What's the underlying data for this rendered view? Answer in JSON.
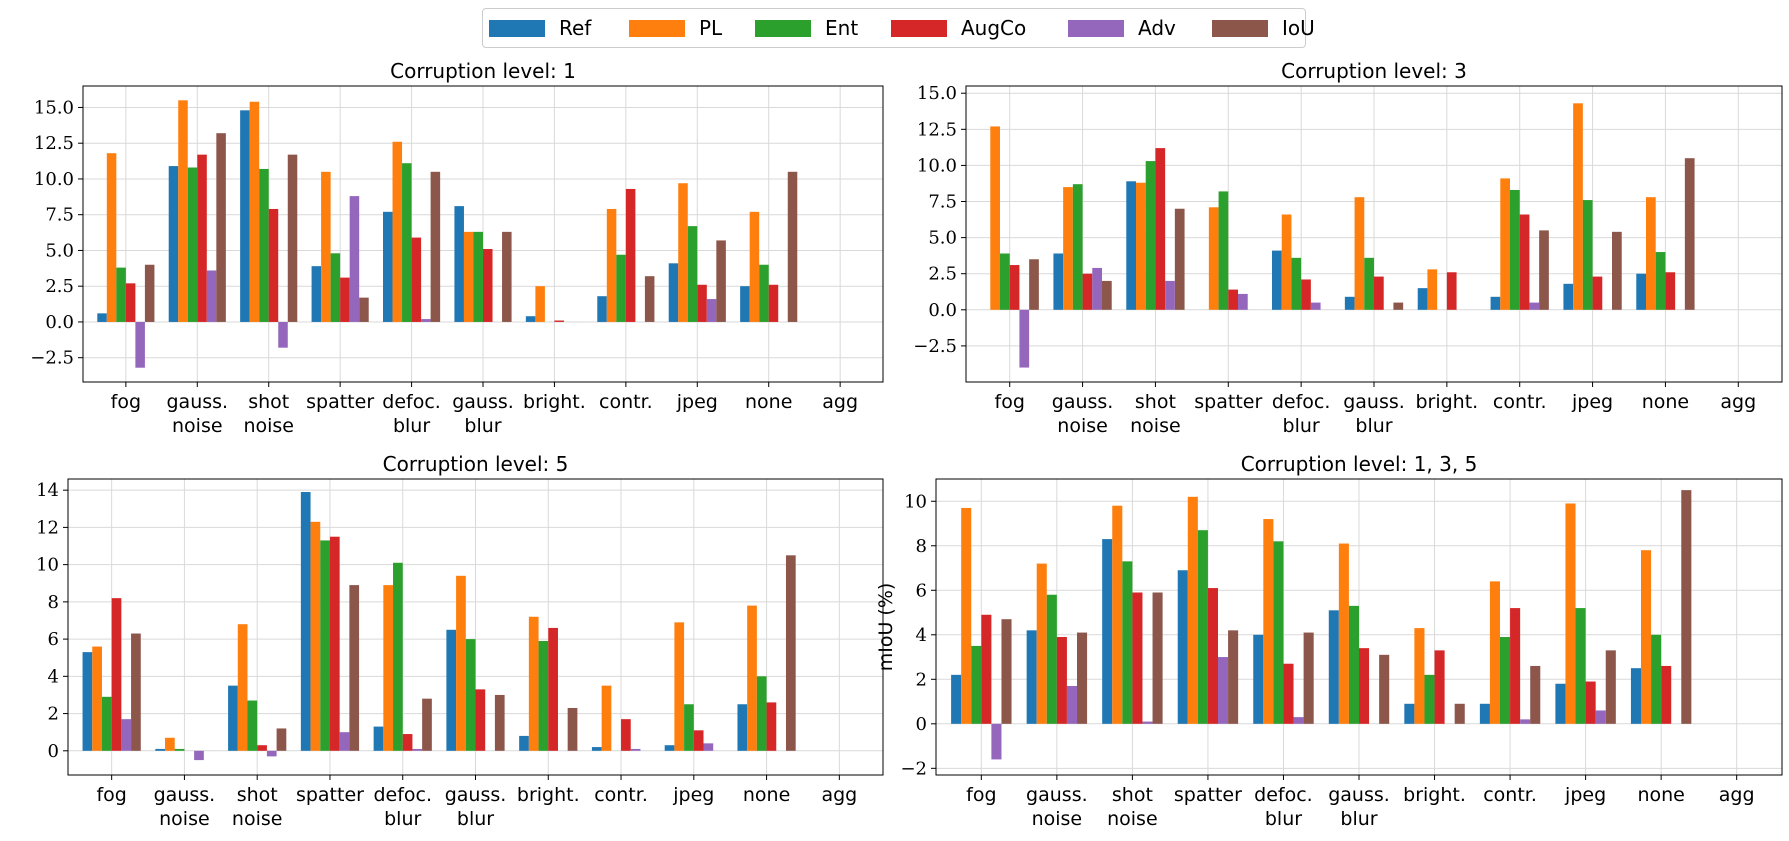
{
  "legend": [
    {
      "name": "Ref",
      "color": "#1f77b4"
    },
    {
      "name": "PL",
      "color": "#ff7f0e"
    },
    {
      "name": "Ent",
      "color": "#2ca02c"
    },
    {
      "name": "AugCo",
      "color": "#d62728"
    },
    {
      "name": "Adv",
      "color": "#9467bd"
    },
    {
      "name": "IoU",
      "color": "#8c564b"
    }
  ],
  "chart_data": [
    {
      "type": "bar",
      "title": "Corruption level: 1",
      "categories": [
        [
          "fog"
        ],
        [
          "gauss.",
          "noise"
        ],
        [
          "shot",
          "noise"
        ],
        [
          "spatter"
        ],
        [
          "defoc.",
          "blur"
        ],
        [
          "gauss.",
          "blur"
        ],
        [
          "bright."
        ],
        [
          "contr."
        ],
        [
          "jpeg"
        ],
        [
          "none"
        ],
        [
          "agg"
        ]
      ],
      "ylim": [
        -4.2,
        16.5
      ],
      "yticks": [
        -2.5,
        0.0,
        2.5,
        5.0,
        7.5,
        10.0,
        12.5,
        15.0
      ],
      "ytick_labels": [
        "−2.5",
        "0.0",
        "2.5",
        "5.0",
        "7.5",
        "10.0",
        "12.5",
        "15.0"
      ],
      "ylabel": "",
      "grid": true,
      "series": [
        {
          "name": "Ref",
          "values": [
            0.6,
            10.9,
            14.8,
            3.9,
            7.7,
            8.1,
            0.4,
            1.8,
            4.1,
            2.5,
            null
          ]
        },
        {
          "name": "PL",
          "values": [
            11.8,
            15.5,
            15.4,
            10.5,
            12.6,
            6.3,
            2.5,
            7.9,
            9.7,
            7.7,
            null
          ]
        },
        {
          "name": "Ent",
          "values": [
            3.8,
            10.8,
            10.7,
            4.8,
            11.1,
            6.3,
            0.0,
            4.7,
            6.7,
            4.0,
            null
          ]
        },
        {
          "name": "AugCo",
          "values": [
            2.7,
            11.7,
            7.9,
            3.1,
            5.9,
            5.1,
            0.1,
            9.3,
            2.6,
            2.6,
            null
          ]
        },
        {
          "name": "Adv",
          "values": [
            -3.2,
            3.6,
            -1.8,
            8.8,
            0.2,
            0.0,
            0.0,
            0.0,
            1.6,
            0.0,
            null
          ]
        },
        {
          "name": "IoU",
          "values": [
            4.0,
            13.2,
            11.7,
            1.7,
            10.5,
            6.3,
            0.0,
            3.2,
            5.7,
            10.5,
            null
          ]
        }
      ]
    },
    {
      "type": "bar",
      "title": "Corruption level: 3",
      "categories": [
        [
          "fog"
        ],
        [
          "gauss.",
          "noise"
        ],
        [
          "shot",
          "noise"
        ],
        [
          "spatter"
        ],
        [
          "defoc.",
          "blur"
        ],
        [
          "gauss.",
          "blur"
        ],
        [
          "bright."
        ],
        [
          "contr."
        ],
        [
          "jpeg"
        ],
        [
          "none"
        ],
        [
          "agg"
        ]
      ],
      "ylim": [
        -5.0,
        15.5
      ],
      "yticks": [
        -2.5,
        0.0,
        2.5,
        5.0,
        7.5,
        10.0,
        12.5,
        15.0
      ],
      "ytick_labels": [
        "−2.5",
        "0.0",
        "2.5",
        "5.0",
        "7.5",
        "10.0",
        "12.5",
        "15.0"
      ],
      "ylabel": "",
      "grid": true,
      "series": [
        {
          "name": "Ref",
          "values": [
            0.0,
            3.9,
            8.9,
            0.0,
            4.1,
            0.9,
            1.5,
            0.9,
            1.8,
            2.5,
            null
          ]
        },
        {
          "name": "PL",
          "values": [
            12.7,
            8.5,
            8.8,
            7.1,
            6.6,
            7.8,
            2.8,
            9.1,
            14.3,
            7.8,
            null
          ]
        },
        {
          "name": "Ent",
          "values": [
            3.9,
            8.7,
            10.3,
            8.2,
            3.6,
            3.6,
            0.0,
            8.3,
            7.6,
            4.0,
            null
          ]
        },
        {
          "name": "AugCo",
          "values": [
            3.1,
            2.5,
            11.2,
            1.4,
            2.1,
            2.3,
            2.6,
            6.6,
            2.3,
            2.6,
            null
          ]
        },
        {
          "name": "Adv",
          "values": [
            -4.0,
            2.9,
            2.0,
            1.1,
            0.5,
            0.0,
            0.0,
            0.5,
            0.0,
            0.0,
            null
          ]
        },
        {
          "name": "IoU",
          "values": [
            3.5,
            2.0,
            7.0,
            0.0,
            0.0,
            0.5,
            0.0,
            5.5,
            5.4,
            10.5,
            null
          ]
        }
      ]
    },
    {
      "type": "bar",
      "title": "Corruption level: 5",
      "categories": [
        [
          "fog"
        ],
        [
          "gauss.",
          "noise"
        ],
        [
          "shot",
          "noise"
        ],
        [
          "spatter"
        ],
        [
          "defoc.",
          "blur"
        ],
        [
          "gauss.",
          "blur"
        ],
        [
          "bright."
        ],
        [
          "contr."
        ],
        [
          "jpeg"
        ],
        [
          "none"
        ],
        [
          "agg"
        ]
      ],
      "ylim": [
        -1.3,
        14.6
      ],
      "yticks": [
        0,
        2,
        4,
        6,
        8,
        10,
        12,
        14
      ],
      "ytick_labels": [
        "0",
        "2",
        "4",
        "6",
        "8",
        "10",
        "12",
        "14"
      ],
      "ylabel": "",
      "grid": true,
      "series": [
        {
          "name": "Ref",
          "values": [
            5.3,
            0.1,
            3.5,
            13.9,
            1.3,
            6.5,
            0.8,
            0.2,
            0.3,
            2.5,
            null
          ]
        },
        {
          "name": "PL",
          "values": [
            5.6,
            0.7,
            6.8,
            12.3,
            8.9,
            9.4,
            7.2,
            3.5,
            6.9,
            7.8,
            null
          ]
        },
        {
          "name": "Ent",
          "values": [
            2.9,
            0.1,
            2.7,
            11.3,
            10.1,
            6.0,
            5.9,
            0.0,
            2.5,
            4.0,
            null
          ]
        },
        {
          "name": "AugCo",
          "values": [
            8.2,
            0.0,
            0.3,
            11.5,
            0.9,
            3.3,
            6.6,
            1.7,
            1.1,
            2.6,
            null
          ]
        },
        {
          "name": "Adv",
          "values": [
            1.7,
            -0.5,
            -0.3,
            1.0,
            0.1,
            0.0,
            0.0,
            0.1,
            0.4,
            0.0,
            null
          ]
        },
        {
          "name": "IoU",
          "values": [
            6.3,
            0.0,
            1.2,
            8.9,
            2.8,
            3.0,
            2.3,
            0.0,
            0.0,
            10.5,
            null
          ]
        }
      ]
    },
    {
      "type": "bar",
      "title": "Corruption level: 1, 3, 5",
      "categories": [
        [
          "fog"
        ],
        [
          "gauss.",
          "noise"
        ],
        [
          "shot",
          "noise"
        ],
        [
          "spatter"
        ],
        [
          "defoc.",
          "blur"
        ],
        [
          "gauss.",
          "blur"
        ],
        [
          "bright."
        ],
        [
          "contr."
        ],
        [
          "jpeg"
        ],
        [
          "none"
        ],
        [
          "agg"
        ]
      ],
      "ylim": [
        -2.3,
        11.0
      ],
      "yticks": [
        -2,
        0,
        2,
        4,
        6,
        8,
        10
      ],
      "ytick_labels": [
        "−2",
        "0",
        "2",
        "4",
        "6",
        "8",
        "10"
      ],
      "ylabel": "mIoU (%)",
      "grid": true,
      "series": [
        {
          "name": "Ref",
          "values": [
            2.2,
            4.2,
            8.3,
            6.9,
            4.0,
            5.1,
            0.9,
            0.9,
            1.8,
            2.5,
            null
          ]
        },
        {
          "name": "PL",
          "values": [
            9.7,
            7.2,
            9.8,
            10.2,
            9.2,
            8.1,
            4.3,
            6.4,
            9.9,
            7.8,
            null
          ]
        },
        {
          "name": "Ent",
          "values": [
            3.5,
            5.8,
            7.3,
            8.7,
            8.2,
            5.3,
            2.2,
            3.9,
            5.2,
            4.0,
            null
          ]
        },
        {
          "name": "AugCo",
          "values": [
            4.9,
            3.9,
            5.9,
            6.1,
            2.7,
            3.4,
            3.3,
            5.2,
            1.9,
            2.6,
            null
          ]
        },
        {
          "name": "Adv",
          "values": [
            -1.6,
            1.7,
            0.1,
            3.0,
            0.3,
            0.0,
            0.0,
            0.2,
            0.6,
            0.0,
            null
          ]
        },
        {
          "name": "IoU",
          "values": [
            4.7,
            4.1,
            5.9,
            4.2,
            4.1,
            3.1,
            0.9,
            2.6,
            3.3,
            10.5,
            null
          ]
        }
      ]
    }
  ]
}
